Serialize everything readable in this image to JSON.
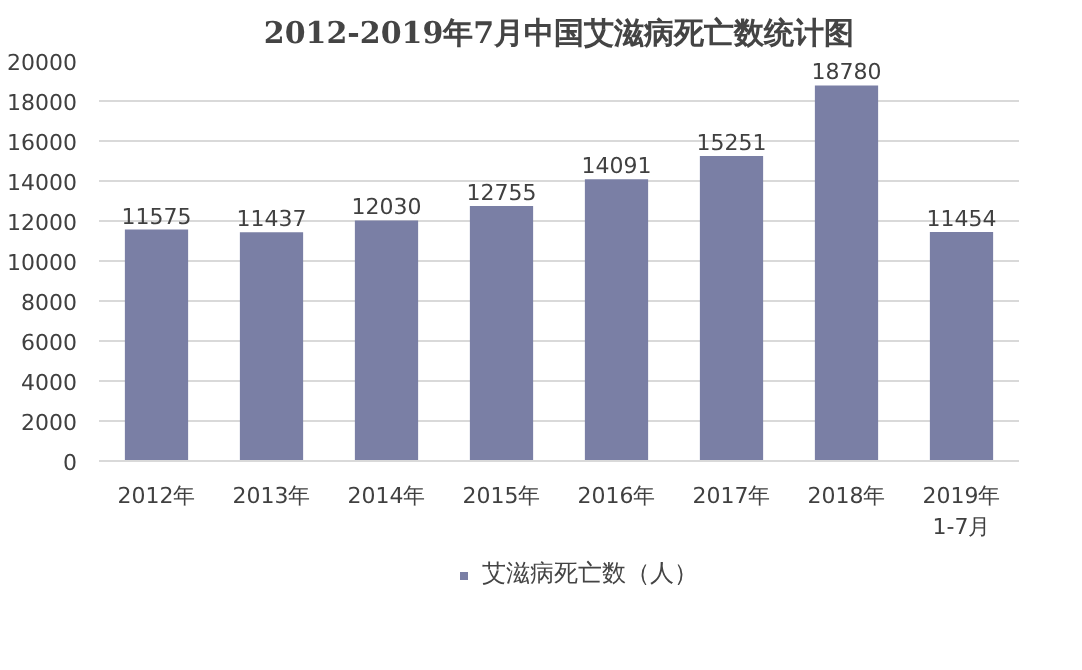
{
  "chart_data": {
    "type": "bar",
    "title": "2012-2019年7月中国艾滋病死亡数统计图",
    "categories": [
      "2012年",
      "2013年",
      "2014年",
      "2015年",
      "2016年",
      "2017年",
      "2018年",
      "2019年\n1-7月"
    ],
    "series": [
      {
        "name": "艾滋病死亡数（人）",
        "color": "#7a7fa5",
        "values": [
          11575,
          11437,
          12030,
          12755,
          14091,
          15251,
          18780,
          11454
        ]
      }
    ],
    "ylim": [
      0,
      20000
    ],
    "yticks": [
      0,
      2000,
      4000,
      6000,
      8000,
      10000,
      12000,
      14000,
      16000,
      18000,
      20000
    ],
    "grid": "y",
    "legend": "bottom",
    "data_labels": true
  }
}
